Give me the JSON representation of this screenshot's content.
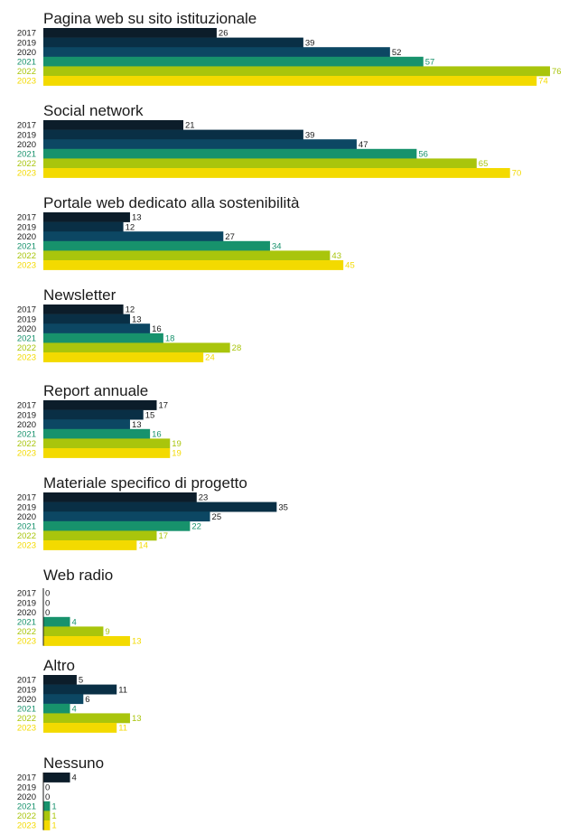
{
  "chart_data": {
    "type": "bar",
    "orientation": "horizontal",
    "series": [
      {
        "name": "2017",
        "color": "#0c1d2a"
      },
      {
        "name": "2019",
        "color": "#092f45"
      },
      {
        "name": "2020",
        "color": "#0c4763"
      },
      {
        "name": "2021",
        "color": "#17926c"
      },
      {
        "name": "2022",
        "color": "#a9c50c"
      },
      {
        "name": "2023",
        "color": "#f3da00"
      }
    ],
    "groups": [
      {
        "title": "Pagina web su sito istituzionale",
        "values": [
          26,
          39,
          52,
          57,
          76,
          74
        ]
      },
      {
        "title": "Social network",
        "values": [
          21,
          39,
          47,
          56,
          65,
          70
        ]
      },
      {
        "title": "Portale web dedicato alla sostenibilità",
        "values": [
          13,
          12,
          27,
          34,
          43,
          45
        ]
      },
      {
        "title": "Newsletter",
        "values": [
          12,
          13,
          16,
          18,
          28,
          24
        ]
      },
      {
        "title": "Report annuale",
        "values": [
          17,
          15,
          13,
          16,
          19,
          19
        ]
      },
      {
        "title": "Materiale specifico di progetto",
        "values": [
          23,
          35,
          25,
          22,
          17,
          14
        ]
      },
      {
        "title": "Web radio",
        "values": [
          0,
          0,
          0,
          4,
          9,
          13
        ]
      },
      {
        "title": "Altro",
        "values": [
          5,
          11,
          6,
          4,
          13,
          11
        ]
      },
      {
        "title": "Nessuno",
        "values": [
          4,
          0,
          0,
          1,
          1,
          1
        ]
      }
    ],
    "value_label_colors": [
      "#1a1a1a",
      "#1a1a1a",
      "#1a1a1a",
      "#17926c",
      "#a9c50c",
      "#f3da00"
    ],
    "xlim": [
      0,
      76
    ]
  }
}
